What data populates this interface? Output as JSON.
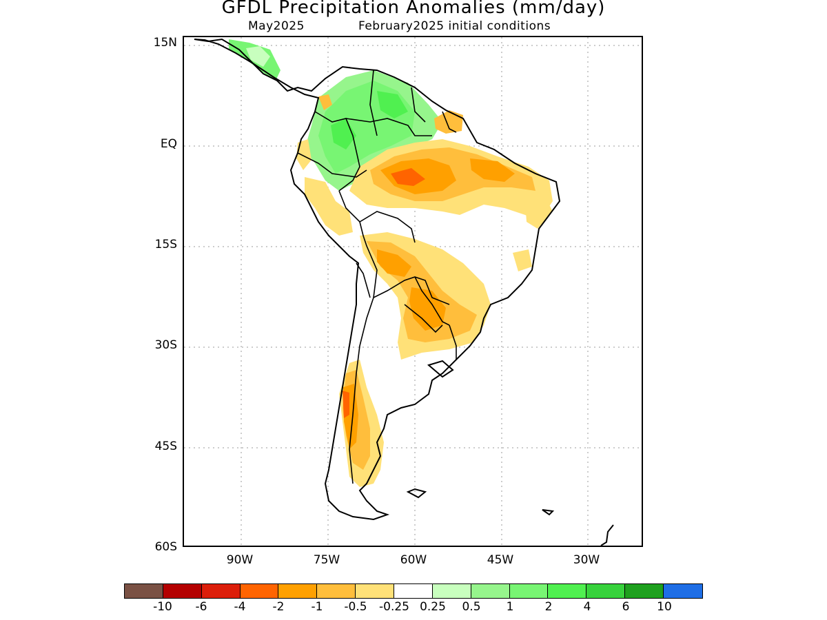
{
  "title": "GFDL Precipitation Anomalies (mm/day)",
  "subtitle_month": "May2025",
  "subtitle_ic": "February2025 initial conditions",
  "lat_labels": [
    "15N",
    "EQ",
    "15S",
    "30S",
    "45S",
    "60S"
  ],
  "lon_labels": [
    "90W",
    "75W",
    "60W",
    "45W",
    "30W"
  ],
  "legend": {
    "colors": [
      "#7a5144",
      "#b40000",
      "#dc1e0a",
      "#ff6400",
      "#ffa000",
      "#ffbe3c",
      "#ffe178",
      "#ffffff",
      "#c8ffbe",
      "#96f58c",
      "#78f573",
      "#50f050",
      "#37d23c",
      "#1ea01e",
      "#1e6ee6"
    ],
    "labels": [
      "-10",
      "-6",
      "-4",
      "-2",
      "-1",
      "-0.5",
      "-0.25",
      "0.25",
      "0.5",
      "1",
      "2",
      "4",
      "6",
      "10"
    ]
  }
}
